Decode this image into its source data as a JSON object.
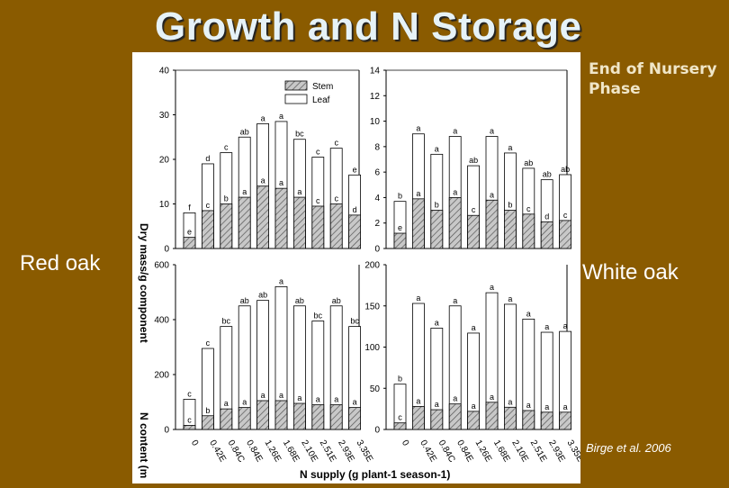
{
  "slide": {
    "title": "Growth and N Storage",
    "phase_label": "End of Nursery Phase",
    "left_species": "Red oak",
    "right_species": "White oak",
    "citation": "Birge et al. 2006",
    "background_color": "#8a5b00"
  },
  "figure": {
    "y_axis_label_top": "Dry mass/g component",
    "y_axis_label_bottom": "N content (m",
    "x_axis_label": "N supply (g plant-1 season-1)",
    "x_tick_labels": [
      "0",
      "0.42E",
      "0.84C",
      "0.84E",
      "1.26E",
      "1.68E",
      "2.10E",
      "2.51E",
      "2.93E",
      "3.35E"
    ],
    "legend": [
      {
        "label": "Stem",
        "pattern": "hatched"
      },
      {
        "label": "Leaf",
        "pattern": "white"
      }
    ]
  },
  "chart_data": [
    {
      "type": "bar",
      "name": "red-oak-dry-mass",
      "categories": [
        "0",
        "0.42E",
        "0.84C",
        "0.84E",
        "1.26E",
        "1.68E",
        "2.10E",
        "2.51E",
        "2.93E",
        "3.35E"
      ],
      "ylim": [
        0,
        40
      ],
      "yticks": [
        0,
        10,
        20,
        30,
        40
      ],
      "series": [
        {
          "name": "Stem",
          "values": [
            2.5,
            8.5,
            10,
            11.5,
            14,
            13.5,
            11.5,
            9.5,
            10,
            7.5
          ],
          "labels": [
            "e",
            "c",
            "b",
            "a",
            "a",
            "a",
            "a",
            "c",
            "c",
            "d"
          ]
        },
        {
          "name": "Leaf",
          "values": [
            8,
            19,
            21.5,
            25,
            28,
            28.5,
            24.5,
            20.5,
            22.5,
            16.5
          ],
          "labels": [
            "f",
            "d",
            "c",
            "ab",
            "a",
            "a",
            "bc",
            "c",
            "c",
            "e"
          ]
        }
      ]
    },
    {
      "type": "bar",
      "name": "white-oak-dry-mass",
      "categories": [
        "0",
        "0.42E",
        "0.84C",
        "0.84E",
        "1.26E",
        "1.68E",
        "2.10E",
        "2.51E",
        "2.93E",
        "3.35E"
      ],
      "ylim": [
        0,
        14
      ],
      "yticks": [
        0,
        2,
        4,
        6,
        8,
        10,
        12,
        14
      ],
      "series": [
        {
          "name": "Stem",
          "values": [
            1.2,
            3.9,
            3,
            4,
            2.6,
            3.8,
            3,
            2.7,
            2.1,
            2.2
          ],
          "labels": [
            "e",
            "a",
            "b",
            "a",
            "c",
            "a",
            "b",
            "c",
            "d",
            "c"
          ]
        },
        {
          "name": "Leaf",
          "values": [
            3.7,
            9,
            7.4,
            8.8,
            6.5,
            8.8,
            7.5,
            6.3,
            5.4,
            5.8
          ],
          "labels": [
            "b",
            "a",
            "a",
            "a",
            "ab",
            "a",
            "a",
            "ab",
            "ab",
            "ab"
          ]
        }
      ]
    },
    {
      "type": "bar",
      "name": "red-oak-n-content",
      "categories": [
        "0",
        "0.42E",
        "0.84C",
        "0.84E",
        "1.26E",
        "1.68E",
        "2.10E",
        "2.51E",
        "2.93E",
        "3.35E"
      ],
      "ylim": [
        0,
        600
      ],
      "yticks": [
        0,
        200,
        400,
        600
      ],
      "series": [
        {
          "name": "Stem",
          "values": [
            15,
            50,
            75,
            80,
            105,
            105,
            95,
            90,
            90,
            80
          ],
          "labels": [
            "c",
            "b",
            "a",
            "a",
            "a",
            "a",
            "a",
            "a",
            "a",
            "a"
          ]
        },
        {
          "name": "Leaf",
          "values": [
            110,
            295,
            375,
            450,
            470,
            520,
            450,
            395,
            450,
            375
          ],
          "labels": [
            "c",
            "c",
            "bc",
            "ab",
            "ab",
            "a",
            "ab",
            "bc",
            "ab",
            "bc"
          ]
        }
      ]
    },
    {
      "type": "bar",
      "name": "white-oak-n-content",
      "categories": [
        "0",
        "0.42E",
        "0.84C",
        "0.84E",
        "1.26E",
        "1.68E",
        "2.10E",
        "2.51E",
        "2.93E",
        "3.35E"
      ],
      "ylim": [
        0,
        200
      ],
      "yticks": [
        0,
        50,
        100,
        150,
        200
      ],
      "series": [
        {
          "name": "Stem",
          "values": [
            8,
            28,
            24,
            31,
            22,
            33,
            27,
            23,
            21,
            21
          ],
          "labels": [
            "c",
            "a",
            "a",
            "a",
            "a",
            "a",
            "a",
            "a",
            "a",
            "a"
          ]
        },
        {
          "name": "Leaf",
          "values": [
            55,
            153,
            123,
            150,
            117,
            166,
            152,
            134,
            118,
            119
          ],
          "labels": [
            "b",
            "a",
            "a",
            "a",
            "a",
            "a",
            "a",
            "a",
            "a",
            "a"
          ]
        }
      ]
    }
  ]
}
